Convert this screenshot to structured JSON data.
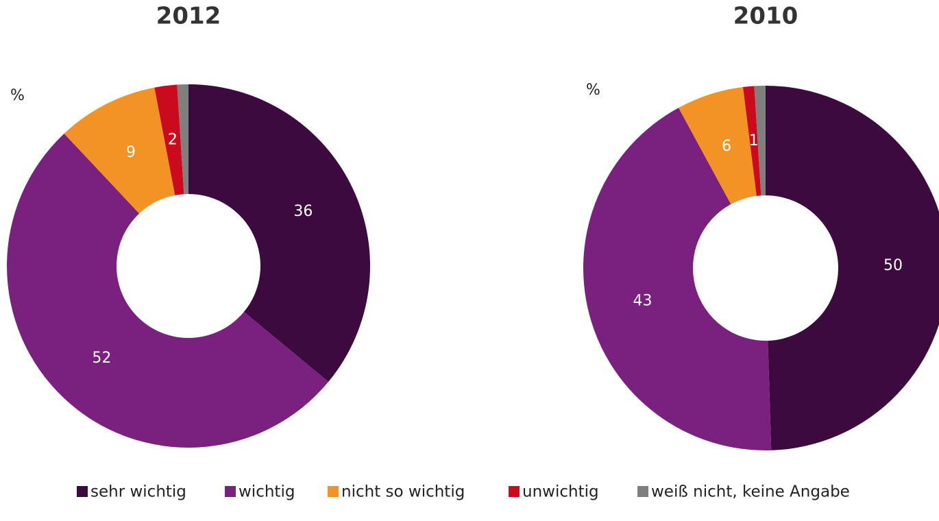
{
  "chart_data": [
    {
      "type": "donut",
      "title": "2012",
      "unit_label": "%",
      "categories": [
        "sehr wichtig",
        "wichtig",
        "nicht so wichtig",
        "unwichtig",
        "weiß nicht, keine Angabe"
      ],
      "values": [
        36,
        52,
        9,
        2,
        1
      ],
      "value_labels": [
        "36",
        "52",
        "9",
        "2",
        null
      ],
      "colors": [
        "#3d0a3f",
        "#7a2180",
        "#f39325",
        "#cc0a1e",
        "#7f7f7f"
      ]
    },
    {
      "type": "donut",
      "title": "2010",
      "unit_label": "%",
      "categories": [
        "sehr wichtig",
        "wichtig",
        "nicht so wichtig",
        "unwichtig",
        "weiß nicht, keine Angabe"
      ],
      "values": [
        50,
        43,
        6,
        1,
        1
      ],
      "value_labels": [
        "50",
        "43",
        "6",
        "1",
        null
      ],
      "colors": [
        "#3d0a3f",
        "#7a2180",
        "#f39325",
        "#cc0a1e",
        "#7f7f7f"
      ]
    }
  ]
}
